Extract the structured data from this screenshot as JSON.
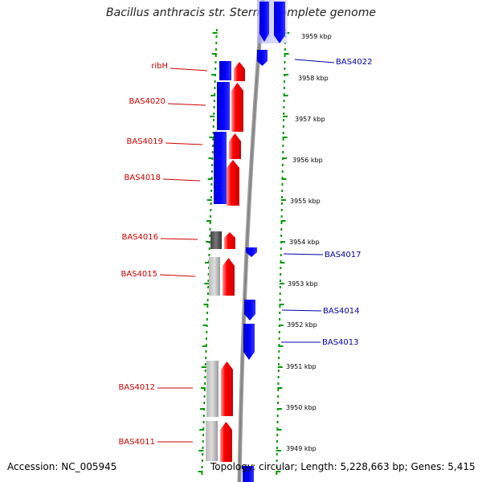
{
  "title": "Bacillus anthracis str. Sterne, complete genome",
  "accession_text": "Accession: NC_005945",
  "topology_text": "Topology: circular; Length: 5,228,663 bp; Genes: 5,415",
  "kbp_ticks": [
    "3959 kbp",
    "3958 kbp",
    "3957 kbp",
    "3956 kbp",
    "3955 kbp",
    "3954 kbp",
    "3953 kbp",
    "3952 kbp",
    "3951 kbp",
    "3950 kbp",
    "3949 kbp"
  ],
  "left_labels": [
    "ribH",
    "BAS4020",
    "BAS4019",
    "BAS4018",
    "BAS4016",
    "BAS4015",
    "BAS4012",
    "BAS4011"
  ],
  "right_labels": [
    "BAS4022",
    "BAS4017",
    "BAS4014",
    "BAS4013"
  ],
  "colors": {
    "forward_gene": "#ff0000",
    "reverse_gene": "#0000ee",
    "grey_gene": "#aaaaaa",
    "dark_grey_gene": "#555555",
    "tick_marks": "#009900",
    "label_red": "#cc0000",
    "label_blue": "#0000aa"
  }
}
